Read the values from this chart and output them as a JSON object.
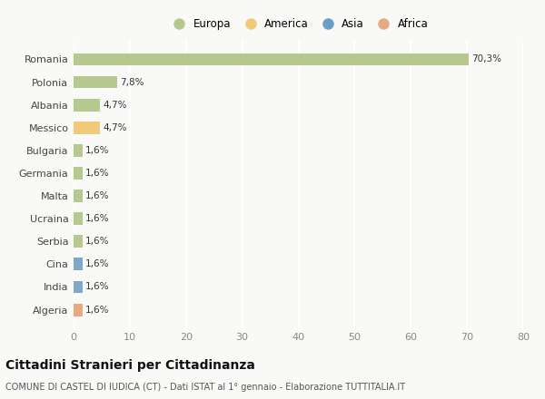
{
  "categories": [
    "Romania",
    "Polonia",
    "Albania",
    "Messico",
    "Bulgaria",
    "Germania",
    "Malta",
    "Ucraina",
    "Serbia",
    "Cina",
    "India",
    "Algeria"
  ],
  "values": [
    70.3,
    7.8,
    4.7,
    4.7,
    1.6,
    1.6,
    1.6,
    1.6,
    1.6,
    1.6,
    1.6,
    1.6
  ],
  "labels": [
    "70,3%",
    "7,8%",
    "4,7%",
    "4,7%",
    "1,6%",
    "1,6%",
    "1,6%",
    "1,6%",
    "1,6%",
    "1,6%",
    "1,6%",
    "1,6%"
  ],
  "bar_colors": [
    "#b5c98e",
    "#b5c98e",
    "#b5c98e",
    "#f0c97a",
    "#b5c98e",
    "#b5c98e",
    "#b5c98e",
    "#b5c98e",
    "#b5c98e",
    "#7ea8c9",
    "#7ea8c9",
    "#e8a882"
  ],
  "legend_labels": [
    "Europa",
    "America",
    "Asia",
    "Africa"
  ],
  "legend_colors": [
    "#b5c98e",
    "#f0c97a",
    "#6b9ec4",
    "#e8a882"
  ],
  "xlim": [
    0,
    80
  ],
  "xticks": [
    0,
    10,
    20,
    30,
    40,
    50,
    60,
    70,
    80
  ],
  "title": "Cittadini Stranieri per Cittadinanza",
  "subtitle": "COMUNE DI CASTEL DI IUDICA (CT) - Dati ISTAT al 1° gennaio - Elaborazione TUTTITALIA.IT",
  "bg_color": "#f9f9f7",
  "grid_color": "#ffffff",
  "bar_height": 0.55
}
